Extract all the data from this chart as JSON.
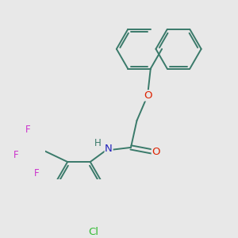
{
  "background_color": "#e8e8e8",
  "bond_color": "#3a7a6a",
  "atom_colors": {
    "O": "#dd2200",
    "N": "#2222bb",
    "Cl": "#33bb33",
    "F": "#cc33cc",
    "H": "#3a7a6a",
    "C": "#3a7a6a"
  },
  "bond_width": 1.4,
  "font_size": 8.5,
  "figsize": [
    3.0,
    3.0
  ],
  "dpi": 100
}
